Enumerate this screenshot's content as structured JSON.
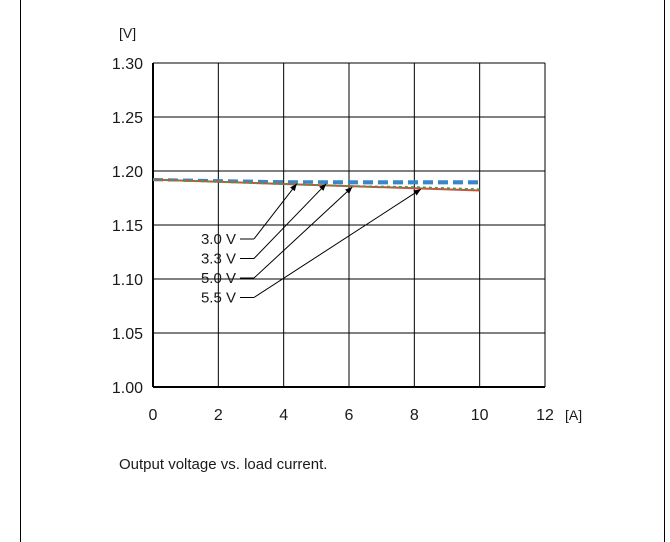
{
  "caption": "Output voltage vs. load current.",
  "chart_data": {
    "type": "line",
    "title": "",
    "xlabel": "[A]",
    "ylabel": "[V]",
    "xlim": [
      0,
      12
    ],
    "ylim": [
      1.0,
      1.3
    ],
    "xticks": [
      0,
      2,
      4,
      6,
      8,
      10,
      12
    ],
    "yticks": [
      1.0,
      1.05,
      1.1,
      1.15,
      1.2,
      1.25,
      1.3
    ],
    "xtick_labels": [
      "0",
      "2",
      "4",
      "6",
      "8",
      "10",
      "12"
    ],
    "ytick_labels": [
      "1.00",
      "1.05",
      "1.10",
      "1.15",
      "1.20",
      "1.25",
      "1.30"
    ],
    "grid": true,
    "series": [
      {
        "name": "3.0 V",
        "x": [
          0,
          2,
          4,
          6,
          8,
          10
        ],
        "y": [
          1.192,
          1.191,
          1.19,
          1.19,
          1.19,
          1.19
        ],
        "color": "#3a86c8",
        "dash": "10,5"
      },
      {
        "name": "3.3 V",
        "x": [
          0,
          2,
          4,
          6,
          8,
          10
        ],
        "y": [
          1.192,
          1.191,
          1.19,
          1.189,
          1.189,
          1.189
        ],
        "color": "#3a86c8",
        "dash": "10,5"
      },
      {
        "name": "5.0 V",
        "x": [
          0,
          2,
          4,
          6,
          8,
          10
        ],
        "y": [
          1.192,
          1.19,
          1.188,
          1.186,
          1.184,
          1.182
        ],
        "color": "#d64a3a",
        "dash": ""
      },
      {
        "name": "5.5 V",
        "x": [
          0,
          2,
          4,
          6,
          8,
          10
        ],
        "y": [
          1.192,
          1.19,
          1.188,
          1.186,
          1.185,
          1.183
        ],
        "color": "#4a9a4a",
        "dash": "3,3"
      }
    ],
    "annotations": [
      {
        "label": "3.0 V",
        "target_x": 4.4,
        "target_y": 1.19
      },
      {
        "label": "3.3 V",
        "target_x": 5.3,
        "target_y": 1.19
      },
      {
        "label": "5.0 V",
        "target_x": 6.1,
        "target_y": 1.187
      },
      {
        "label": "5.5 V",
        "target_x": 8.2,
        "target_y": 1.185
      }
    ]
  }
}
